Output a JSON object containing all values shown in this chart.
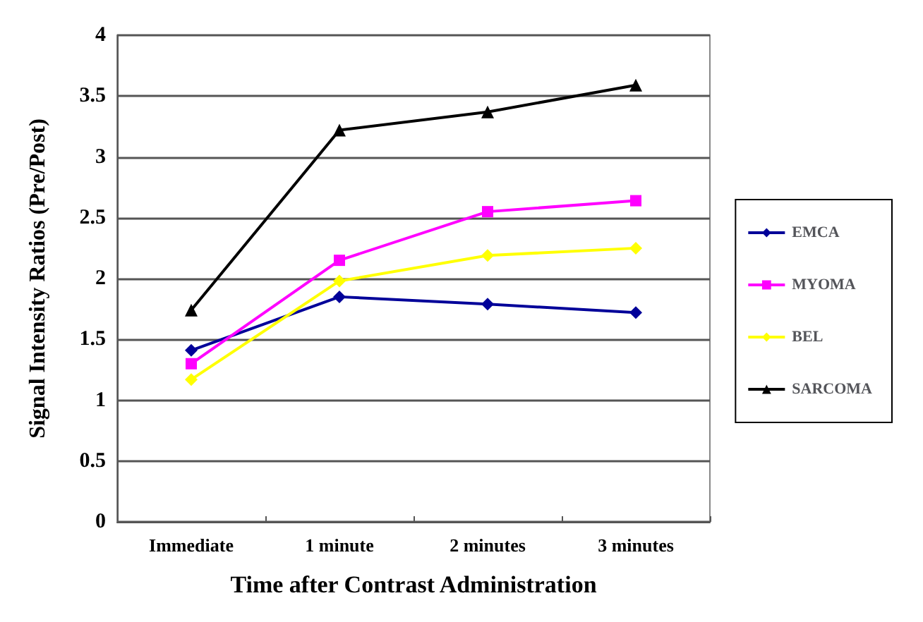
{
  "chart_data": {
    "type": "line",
    "xlabel": "Time after Contrast Administration",
    "ylabel": "Signal Intensity Ratios (Pre/Post)",
    "categories": [
      "Immediate",
      "1 minute",
      "2 minutes",
      "3 minutes"
    ],
    "series": [
      {
        "name": "EMCA",
        "color": "#000099",
        "marker": "diamond",
        "values": [
          1.41,
          1.85,
          1.79,
          1.72
        ]
      },
      {
        "name": "MYOMA",
        "color": "#ff00ff",
        "marker": "square",
        "values": [
          1.3,
          2.15,
          2.55,
          2.64
        ]
      },
      {
        "name": "BEL",
        "color": "#ffff00",
        "marker": "diamond",
        "values": [
          1.17,
          1.98,
          2.19,
          2.25
        ]
      },
      {
        "name": "SARCOMA",
        "color": "#000000",
        "marker": "triangle",
        "values": [
          1.74,
          3.22,
          3.37,
          3.59
        ]
      }
    ],
    "ylim": [
      0,
      4
    ],
    "yticks": [
      0,
      0.5,
      1,
      1.5,
      2,
      2.5,
      3,
      3.5,
      4
    ],
    "grid": "y",
    "legend": "right"
  }
}
